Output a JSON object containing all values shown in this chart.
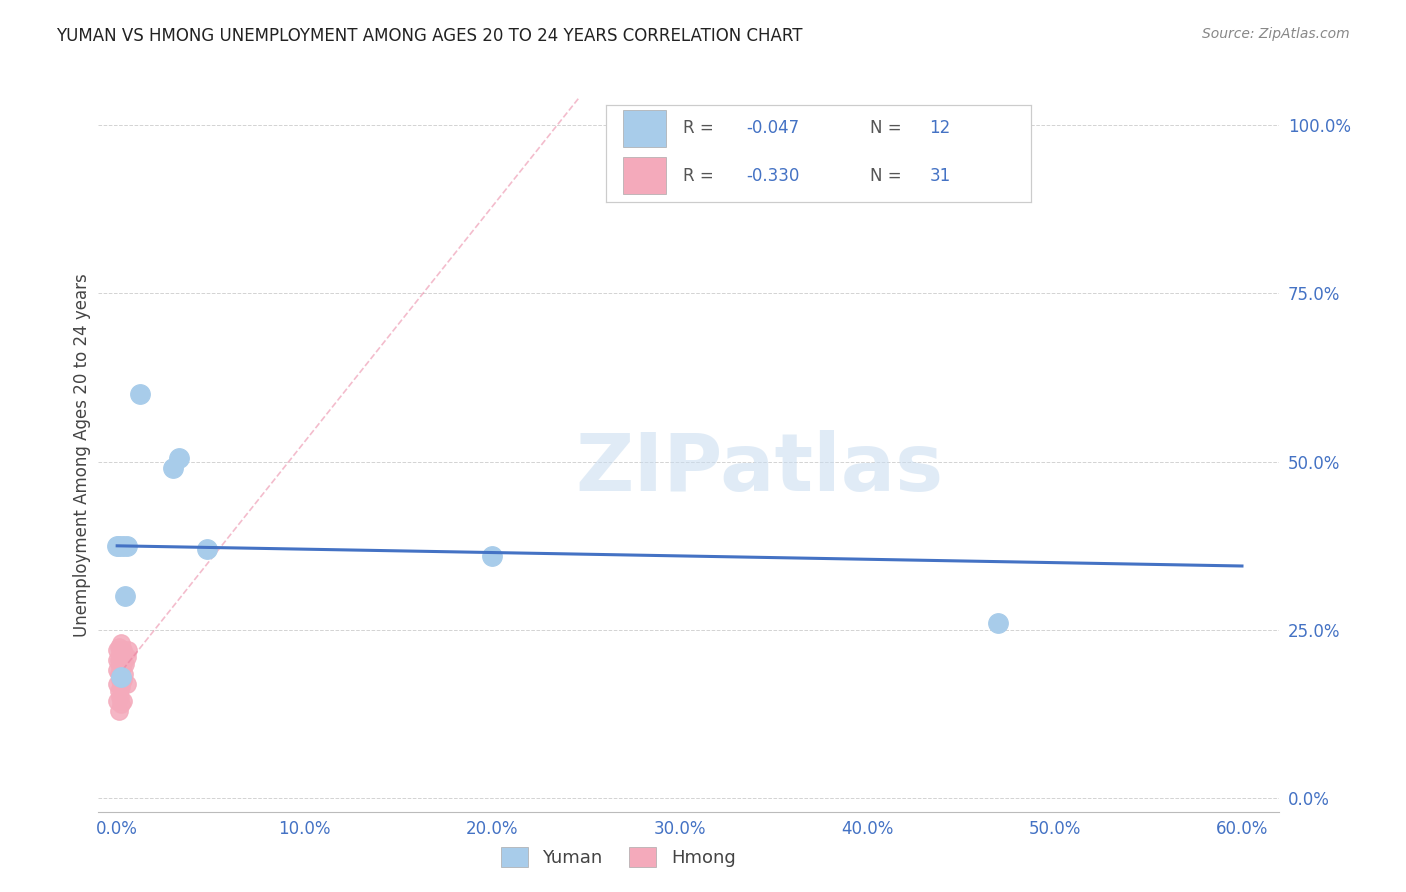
{
  "title": "YUMAN VS HMONG UNEMPLOYMENT AMONG AGES 20 TO 24 YEARS CORRELATION CHART",
  "source": "Source: ZipAtlas.com",
  "xlabel_vals": [
    0.0,
    10.0,
    20.0,
    30.0,
    40.0,
    50.0,
    60.0
  ],
  "ylabel_vals": [
    0.0,
    25.0,
    50.0,
    75.0,
    100.0
  ],
  "xlim": [
    -1.0,
    62.0
  ],
  "ylim": [
    -2.0,
    104.0
  ],
  "yuman_x": [
    0.3,
    1.2,
    3.0,
    3.3,
    0.4,
    0.5,
    4.8,
    0.1,
    0.0,
    0.2,
    20.0,
    47.0
  ],
  "yuman_y": [
    37.5,
    60.0,
    49.0,
    50.5,
    30.0,
    37.5,
    37.0,
    37.5,
    37.5,
    18.0,
    36.0,
    26.0
  ],
  "hmong_x": [
    0.0,
    0.0,
    0.0,
    0.0,
    0.0,
    0.1,
    0.1,
    0.1,
    0.1,
    0.1,
    0.15,
    0.15,
    0.15,
    0.15,
    0.2,
    0.2,
    0.2,
    0.2,
    0.2,
    0.25,
    0.25,
    0.3,
    0.3,
    0.3,
    0.3,
    0.35,
    0.35,
    0.4,
    0.5,
    0.5,
    0.6
  ],
  "hmong_y": [
    22.0,
    20.5,
    19.0,
    17.0,
    14.5,
    22.5,
    20.5,
    18.5,
    16.0,
    13.0,
    21.5,
    19.5,
    17.5,
    15.0,
    23.0,
    21.0,
    19.0,
    16.5,
    14.0,
    20.5,
    17.5,
    22.0,
    20.0,
    17.5,
    14.5,
    21.5,
    18.5,
    20.0,
    21.0,
    17.0,
    22.0
  ],
  "yuman_R": -0.047,
  "yuman_N": 12,
  "hmong_R": -0.33,
  "hmong_N": 31,
  "yuman_color": "#A8CCEA",
  "hmong_color": "#F4AABB",
  "yuman_line_color": "#4472C4",
  "hmong_line_color": "#E87A9A",
  "legend_label_yuman": "Yuman",
  "legend_label_hmong": "Hmong",
  "ylabel": "Unemployment Among Ages 20 to 24 years",
  "watermark": "ZIPatlas",
  "bg_color": "#FFFFFF",
  "grid_color": "#C8C8C8",
  "tick_color": "#4472C4",
  "title_color": "#222222",
  "source_color": "#888888"
}
